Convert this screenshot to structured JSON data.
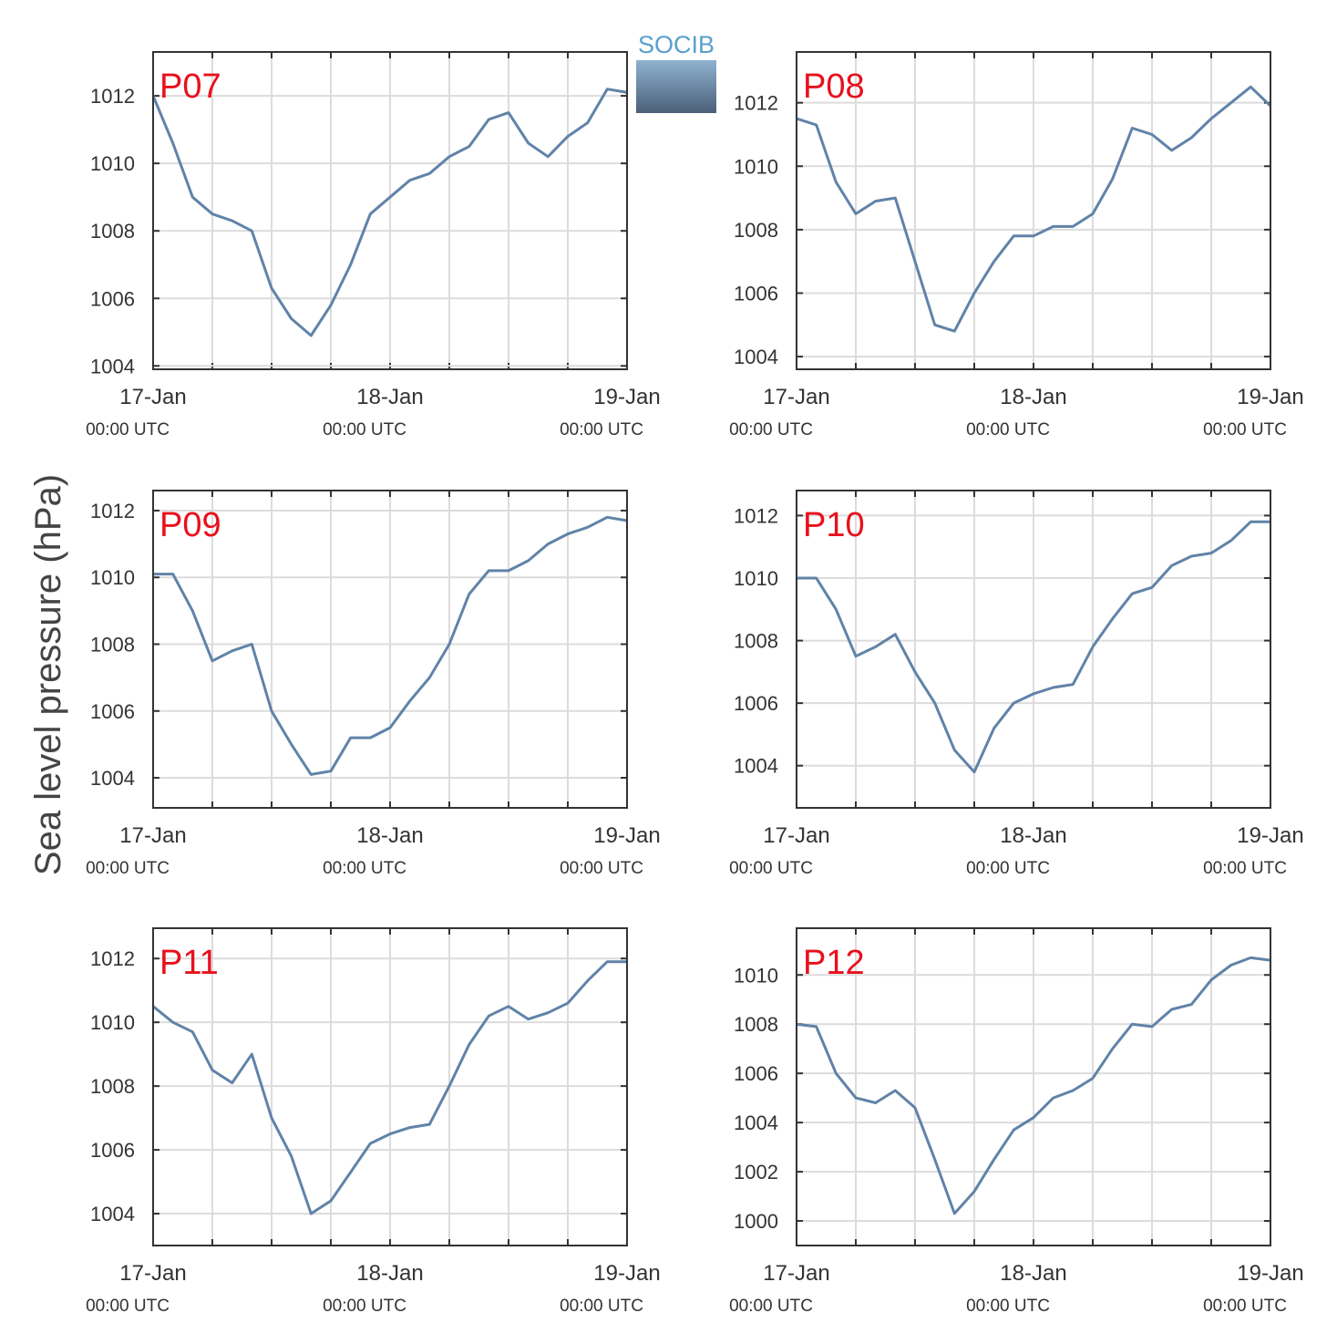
{
  "ylabel": "Sea level pressure (hPa)",
  "logo": "SOCIB",
  "chart_data": [
    {
      "type": "line",
      "title": "P07",
      "color": "#6083a8",
      "xlim": [
        0,
        48
      ],
      "ylim": [
        1003.9,
        1013.3
      ],
      "yticks": [
        1004,
        1006,
        1008,
        1010,
        1012
      ],
      "xticks": [
        {
          "value": 0,
          "label": "17-Jan",
          "sublabel": "00:00 UTC"
        },
        {
          "value": 24,
          "label": "18-Jan",
          "sublabel": "00:00 UTC"
        },
        {
          "value": 48,
          "label": "19-Jan",
          "sublabel": "00:00 UTC"
        }
      ],
      "xminor": [
        6,
        12,
        18,
        30,
        36,
        42
      ],
      "grid": true,
      "x": [
        0,
        2,
        4,
        6,
        8,
        10,
        12,
        14,
        16,
        18,
        20,
        22,
        24,
        26,
        28,
        30,
        32,
        34,
        36,
        38,
        40,
        42,
        44,
        46,
        48
      ],
      "values": [
        1012.0,
        1010.6,
        1009.0,
        1008.5,
        1008.3,
        1008.0,
        1006.3,
        1005.4,
        1004.9,
        1005.8,
        1007.0,
        1008.5,
        1009.0,
        1009.5,
        1009.7,
        1010.2,
        1010.5,
        1011.3,
        1011.5,
        1010.6,
        1010.2,
        1010.8,
        1011.2,
        1012.2,
        1012.1
      ]
    },
    {
      "type": "line",
      "title": "P08",
      "color": "#6083a8",
      "xlim": [
        0,
        48
      ],
      "ylim": [
        1003.6,
        1013.6
      ],
      "yticks": [
        1004,
        1006,
        1008,
        1010,
        1012
      ],
      "xticks": [
        {
          "value": 0,
          "label": "17-Jan",
          "sublabel": "00:00 UTC"
        },
        {
          "value": 24,
          "label": "18-Jan",
          "sublabel": "00:00 UTC"
        },
        {
          "value": 48,
          "label": "19-Jan",
          "sublabel": "00:00 UTC"
        }
      ],
      "xminor": [
        6,
        12,
        18,
        30,
        36,
        42
      ],
      "grid": true,
      "x": [
        0,
        2,
        4,
        6,
        8,
        10,
        12,
        14,
        16,
        18,
        20,
        22,
        24,
        26,
        28,
        30,
        32,
        34,
        36,
        38,
        40,
        42,
        44,
        46,
        48
      ],
      "values": [
        1011.5,
        1011.3,
        1009.5,
        1008.5,
        1008.9,
        1009.0,
        1007.0,
        1005.0,
        1004.8,
        1006.0,
        1007.0,
        1007.8,
        1007.8,
        1008.1,
        1008.1,
        1008.5,
        1009.6,
        1011.2,
        1011.0,
        1010.5,
        1010.9,
        1011.5,
        1012.0,
        1012.5,
        1011.9
      ]
    },
    {
      "type": "line",
      "title": "P09",
      "color": "#6083a8",
      "xlim": [
        0,
        48
      ],
      "ylim": [
        1003.1,
        1012.6
      ],
      "yticks": [
        1004,
        1006,
        1008,
        1010,
        1012
      ],
      "xticks": [
        {
          "value": 0,
          "label": "17-Jan",
          "sublabel": "00:00 UTC"
        },
        {
          "value": 24,
          "label": "18-Jan",
          "sublabel": "00:00 UTC"
        },
        {
          "value": 48,
          "label": "19-Jan",
          "sublabel": "00:00 UTC"
        }
      ],
      "xminor": [
        6,
        12,
        18,
        30,
        36,
        42
      ],
      "grid": true,
      "x": [
        0,
        2,
        4,
        6,
        8,
        10,
        12,
        14,
        16,
        18,
        20,
        22,
        24,
        26,
        28,
        30,
        32,
        34,
        36,
        38,
        40,
        42,
        44,
        46,
        48
      ],
      "values": [
        1010.1,
        1010.1,
        1009.0,
        1007.5,
        1007.8,
        1008.0,
        1006.0,
        1005.0,
        1004.1,
        1004.2,
        1005.2,
        1005.2,
        1005.5,
        1006.3,
        1007.0,
        1008.0,
        1009.5,
        1010.2,
        1010.2,
        1010.5,
        1011.0,
        1011.3,
        1011.5,
        1011.8,
        1011.7
      ]
    },
    {
      "type": "line",
      "title": "P10",
      "color": "#6083a8",
      "xlim": [
        0,
        48
      ],
      "ylim": [
        1002.65,
        1012.8
      ],
      "yticks": [
        1004,
        1006,
        1008,
        1010,
        1012
      ],
      "xticks": [
        {
          "value": 0,
          "label": "17-Jan",
          "sublabel": "00:00 UTC"
        },
        {
          "value": 24,
          "label": "18-Jan",
          "sublabel": "00:00 UTC"
        },
        {
          "value": 48,
          "label": "19-Jan",
          "sublabel": "00:00 UTC"
        }
      ],
      "xminor": [
        6,
        12,
        18,
        30,
        36,
        42
      ],
      "grid": true,
      "x": [
        0,
        2,
        4,
        6,
        8,
        10,
        12,
        14,
        16,
        18,
        20,
        22,
        24,
        26,
        28,
        30,
        32,
        34,
        36,
        38,
        40,
        42,
        44,
        46,
        48
      ],
      "values": [
        1010.0,
        1010.0,
        1009.0,
        1007.5,
        1007.8,
        1008.2,
        1007.0,
        1006.0,
        1004.5,
        1003.8,
        1005.2,
        1006.0,
        1006.3,
        1006.5,
        1006.6,
        1007.8,
        1008.7,
        1009.5,
        1009.7,
        1010.4,
        1010.7,
        1010.8,
        1011.2,
        1011.8,
        1011.8
      ]
    },
    {
      "type": "line",
      "title": "P11",
      "color": "#6083a8",
      "xlim": [
        0,
        48
      ],
      "ylim": [
        1003.0,
        1012.95
      ],
      "yticks": [
        1004,
        1006,
        1008,
        1010,
        1012
      ],
      "xticks": [
        {
          "value": 0,
          "label": "17-Jan",
          "sublabel": "00:00 UTC"
        },
        {
          "value": 24,
          "label": "18-Jan",
          "sublabel": "00:00 UTC"
        },
        {
          "value": 48,
          "label": "19-Jan",
          "sublabel": "00:00 UTC"
        }
      ],
      "xminor": [
        6,
        12,
        18,
        30,
        36,
        42
      ],
      "grid": true,
      "x": [
        0,
        2,
        4,
        6,
        8,
        10,
        12,
        14,
        16,
        18,
        20,
        22,
        24,
        26,
        28,
        30,
        32,
        34,
        36,
        38,
        40,
        42,
        44,
        46,
        48
      ],
      "values": [
        1010.5,
        1010.0,
        1009.7,
        1008.5,
        1008.1,
        1009.0,
        1007.0,
        1005.8,
        1004.0,
        1004.4,
        1005.3,
        1006.2,
        1006.5,
        1006.7,
        1006.8,
        1008.0,
        1009.3,
        1010.2,
        1010.5,
        1010.1,
        1010.3,
        1010.6,
        1011.3,
        1011.9,
        1011.9
      ]
    },
    {
      "type": "line",
      "title": "P12",
      "color": "#6083a8",
      "xlim": [
        0,
        48
      ],
      "ylim": [
        999.0,
        1011.9
      ],
      "yticks": [
        1000,
        1002,
        1004,
        1006,
        1008,
        1010
      ],
      "xticks": [
        {
          "value": 0,
          "label": "17-Jan",
          "sublabel": "00:00 UTC"
        },
        {
          "value": 24,
          "label": "18-Jan",
          "sublabel": "00:00 UTC"
        },
        {
          "value": 48,
          "label": "19-Jan",
          "sublabel": "00:00 UTC"
        }
      ],
      "xminor": [
        6,
        12,
        18,
        30,
        36,
        42
      ],
      "grid": true,
      "x": [
        0,
        2,
        4,
        6,
        8,
        10,
        12,
        14,
        16,
        18,
        20,
        22,
        24,
        26,
        28,
        30,
        32,
        34,
        36,
        38,
        40,
        42,
        44,
        46,
        48
      ],
      "values": [
        1008.0,
        1007.9,
        1006.0,
        1005.0,
        1004.8,
        1005.3,
        1004.6,
        1002.5,
        1000.3,
        1001.2,
        1002.5,
        1003.7,
        1004.2,
        1005.0,
        1005.3,
        1005.8,
        1007.0,
        1008.0,
        1007.9,
        1008.6,
        1008.8,
        1009.8,
        1010.4,
        1010.7,
        1010.6
      ]
    }
  ]
}
